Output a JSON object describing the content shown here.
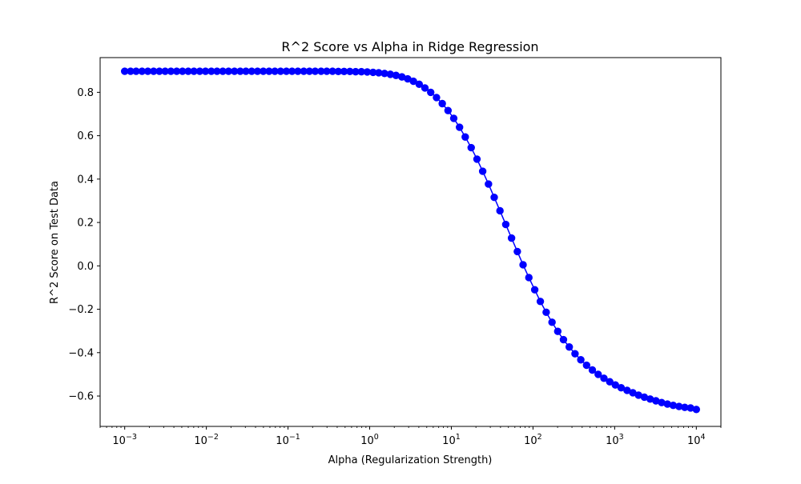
{
  "chart_data": {
    "type": "line",
    "title": "R^2 Score vs Alpha in Ridge Regression",
    "xlabel": "Alpha (Regularization Strength)",
    "ylabel": "R^2 Score on Test Data",
    "xscale": "log",
    "xlim": [
      0.0005,
      20000
    ],
    "ylim": [
      -0.74,
      0.96
    ],
    "grid": false,
    "legend": "none",
    "x_ticks": [
      {
        "value": 0.001,
        "base": "10",
        "exp": "−3"
      },
      {
        "value": 0.01,
        "base": "10",
        "exp": "−2"
      },
      {
        "value": 0.1,
        "base": "10",
        "exp": "−1"
      },
      {
        "value": 1,
        "base": "10",
        "exp": "0"
      },
      {
        "value": 10,
        "base": "10",
        "exp": "1"
      },
      {
        "value": 100,
        "base": "10",
        "exp": "2"
      },
      {
        "value": 1000,
        "base": "10",
        "exp": "3"
      },
      {
        "value": 10000,
        "base": "10",
        "exp": "4"
      }
    ],
    "y_ticks": [
      {
        "value": 0.8,
        "label": "0.8"
      },
      {
        "value": 0.6,
        "label": "0.6"
      },
      {
        "value": 0.4,
        "label": "0.4"
      },
      {
        "value": 0.2,
        "label": "0.2"
      },
      {
        "value": 0.0,
        "label": "0.0"
      },
      {
        "value": -0.2,
        "label": "−0.2"
      },
      {
        "value": -0.4,
        "label": "−0.4"
      },
      {
        "value": -0.6,
        "label": "−0.6"
      }
    ],
    "series": [
      {
        "color": "#0000ff",
        "marker": "circle",
        "x": [
          0.001,
          0.00118,
          0.00138,
          0.00163,
          0.00192,
          0.00226,
          0.00266,
          0.00313,
          0.00368,
          0.00433,
          0.0051,
          0.006,
          0.00705,
          0.0083,
          0.00977,
          0.0115,
          0.0135,
          0.0159,
          0.0187,
          0.0221,
          0.026,
          0.0305,
          0.0359,
          0.0423,
          0.0498,
          0.0586,
          0.069,
          0.0811,
          0.0955,
          0.112,
          0.132,
          0.156,
          0.183,
          0.215,
          0.254,
          0.298,
          0.351,
          0.413,
          0.486,
          0.572,
          0.673,
          0.792,
          0.933,
          1.1,
          1.29,
          1.52,
          1.79,
          2.1,
          2.48,
          2.92,
          3.43,
          4.04,
          4.75,
          5.59,
          6.58,
          7.74,
          9.11,
          10.7,
          12.6,
          14.8,
          17.5,
          20.6,
          24.2,
          28.5,
          33.5,
          39.4,
          46.4,
          54.6,
          64.3,
          75.6,
          89.0,
          105,
          123,
          145,
          171,
          201,
          236,
          278,
          327,
          385,
          453,
          533,
          628,
          739,
          870,
          1020,
          1200,
          1420,
          1670,
          1960,
          2310,
          2720,
          3200,
          3760,
          4430,
          5210,
          6140,
          7220,
          8500,
          10000
        ],
        "y": [
          0.897,
          0.897,
          0.897,
          0.897,
          0.897,
          0.897,
          0.897,
          0.897,
          0.897,
          0.897,
          0.897,
          0.897,
          0.897,
          0.897,
          0.897,
          0.897,
          0.897,
          0.897,
          0.897,
          0.897,
          0.897,
          0.897,
          0.897,
          0.897,
          0.897,
          0.897,
          0.897,
          0.897,
          0.897,
          0.897,
          0.897,
          0.897,
          0.897,
          0.897,
          0.897,
          0.897,
          0.897,
          0.896,
          0.896,
          0.896,
          0.895,
          0.895,
          0.894,
          0.892,
          0.89,
          0.887,
          0.883,
          0.878,
          0.871,
          0.862,
          0.851,
          0.837,
          0.82,
          0.8,
          0.776,
          0.748,
          0.716,
          0.68,
          0.639,
          0.594,
          0.545,
          0.492,
          0.436,
          0.377,
          0.316,
          0.254,
          0.191,
          0.128,
          0.066,
          0.005,
          -0.054,
          -0.11,
          -0.164,
          -0.214,
          -0.26,
          -0.302,
          -0.34,
          -0.374,
          -0.405,
          -0.433,
          -0.458,
          -0.48,
          -0.5,
          -0.518,
          -0.534,
          -0.549,
          -0.562,
          -0.574,
          -0.585,
          -0.596,
          -0.605,
          -0.614,
          -0.622,
          -0.63,
          -0.637,
          -0.643,
          -0.648,
          -0.652,
          -0.655,
          -0.662
        ]
      }
    ]
  }
}
